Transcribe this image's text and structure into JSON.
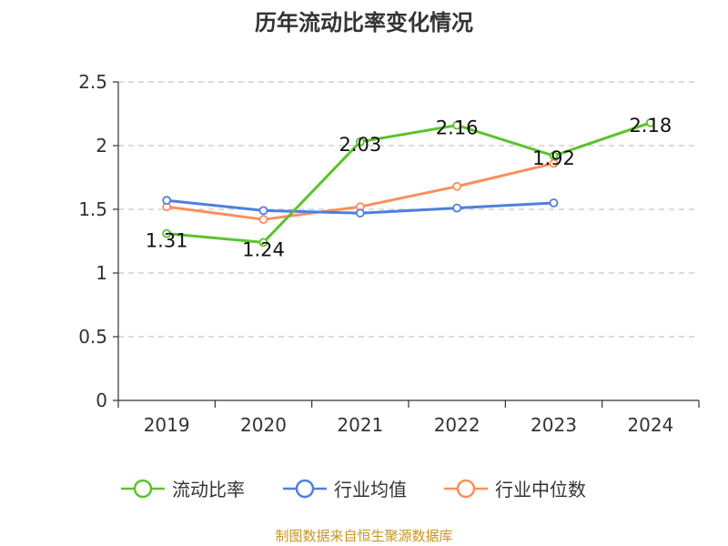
{
  "chart_data": {
    "type": "line",
    "title": "历年流动比率变化情况",
    "categories": [
      "2019",
      "2020",
      "2021",
      "2022",
      "2023",
      "2024"
    ],
    "yticks": [
      "0",
      "0.5",
      "1",
      "1.5",
      "2",
      "2.5"
    ],
    "ylim": [
      0,
      2.5
    ],
    "grid": true,
    "legend_position": "bottom",
    "series": [
      {
        "name": "流动比率",
        "color": "#5cc22d",
        "values": [
          1.31,
          1.24,
          2.03,
          2.16,
          1.92,
          2.18
        ],
        "labels": [
          "1.31",
          "1.24",
          "2.03",
          "2.16",
          "1.92",
          "2.18"
        ]
      },
      {
        "name": "行业均值",
        "color": "#4f7fdd",
        "values": [
          1.57,
          1.49,
          1.47,
          1.51,
          1.55,
          null
        ]
      },
      {
        "name": "行业中位数",
        "color": "#f98f5c",
        "values": [
          1.52,
          1.42,
          1.52,
          1.68,
          1.86,
          null
        ]
      }
    ]
  },
  "source": {
    "text": "制图数据来自恒生聚源数据库",
    "color": "#c8961e"
  }
}
